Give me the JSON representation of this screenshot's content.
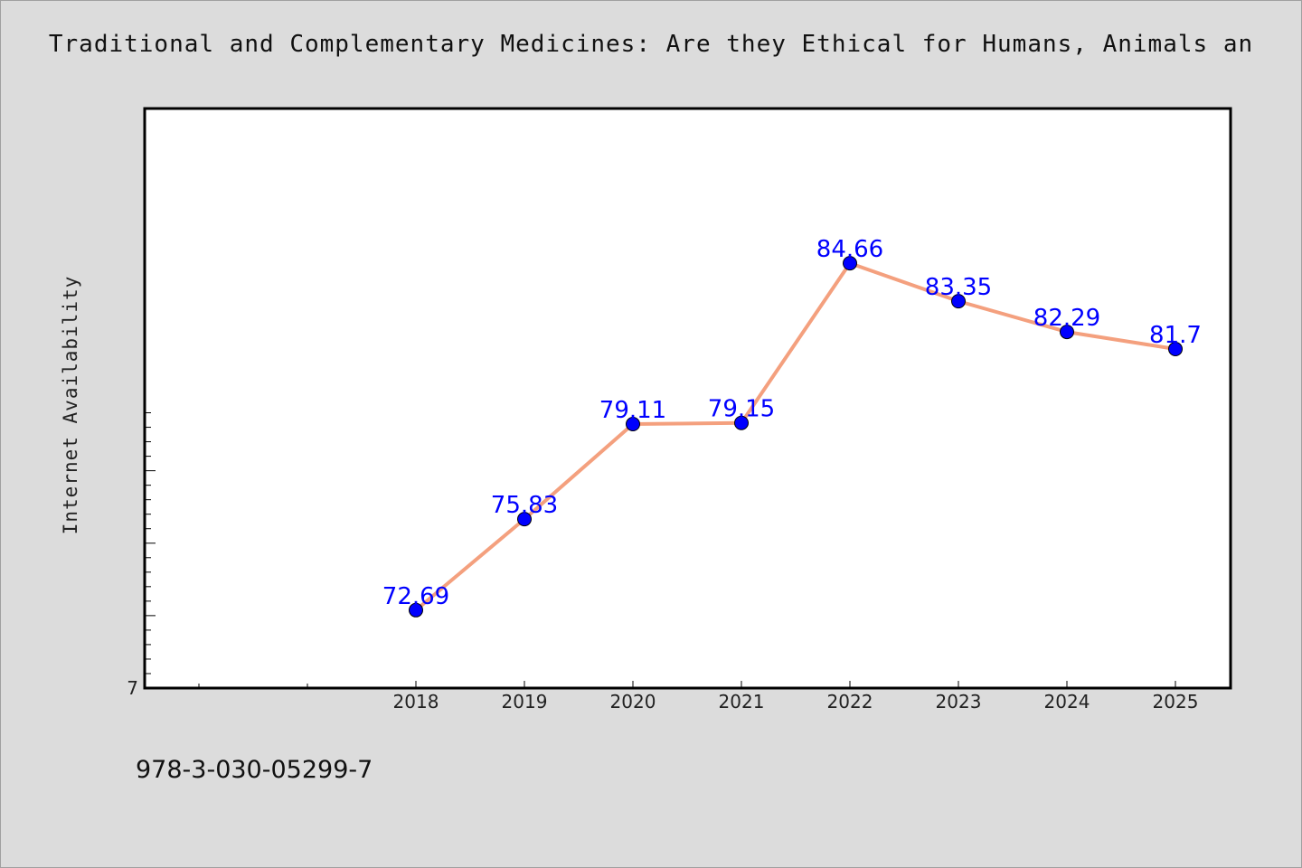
{
  "chart_data": {
    "type": "line",
    "title": "Traditional and Complementary Medicines: Are they Ethical for Humans, Animals an",
    "ylabel": "Internet Availability",
    "xlabel": "",
    "x": [
      "2018",
      "2019",
      "2020",
      "2021",
      "2022",
      "2023",
      "2024",
      "2025"
    ],
    "series": [
      {
        "values": [
          72.69,
          75.83,
          79.11,
          79.15,
          84.66,
          83.35,
          82.29,
          81.7
        ]
      }
    ],
    "data_labels": [
      "72.69",
      "75.83",
      "79.11",
      "79.15",
      "84.66",
      "83.35",
      "82.29",
      "81.7"
    ],
    "ylim": [
      70.0,
      90.0
    ],
    "y_tick_labels": [
      "7"
    ],
    "colors": {
      "line": "#f4a07e",
      "marker": "#0000ff",
      "label": "#0000ff",
      "background": "#dcdcdc"
    },
    "grid": false,
    "legend": "none"
  },
  "footer_text": "978-3-030-05299-7"
}
